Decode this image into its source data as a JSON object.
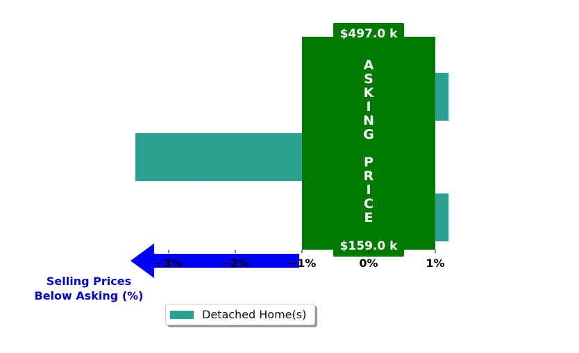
{
  "chart_data": {
    "type": "bar",
    "orientation": "horizontal",
    "series": [
      {
        "name": "Detached Home(s)",
        "values": [
          1.2,
          -3.5,
          1.2
        ],
        "color": "#2aa091"
      }
    ],
    "xlim": [
      -4,
      2
    ],
    "x_ticks": [
      "−3%",
      "−2%",
      "−1%",
      "0%",
      "1%"
    ],
    "asking_price_band": {
      "text": "A S K I N G  P R I C E",
      "letters": [
        "A",
        "S",
        "K",
        "I",
        "N",
        "G",
        "",
        "P",
        "R",
        "I",
        "C",
        "E"
      ],
      "x_range": [
        -1,
        1
      ],
      "color": "#007a00",
      "top_label": "$497.0 k",
      "bottom_label": "$159.0 k"
    },
    "arrow": {
      "color": "#0000ff",
      "label_line1": "Selling Prices",
      "label_line2": "Below Asking (%)"
    },
    "grid": false,
    "legend": {
      "position": "bottom-left",
      "label": "Detached Home(s)"
    }
  }
}
